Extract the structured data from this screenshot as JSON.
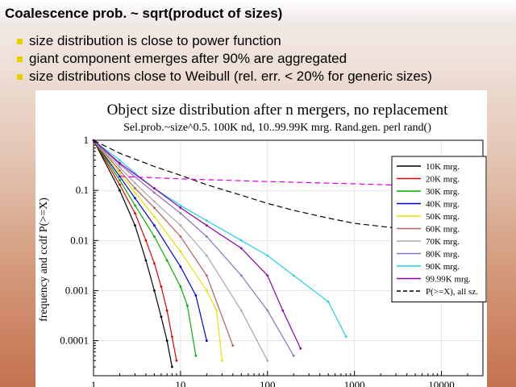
{
  "slide": {
    "title": "Coalescence prob. ~ sqrt(product of sizes)",
    "bullets": [
      "size distribution is close to power function",
      "giant component emerges after 90% are aggregated",
      "size distributions close to Weibull  (rel. err. < 20% for generic sizes)"
    ]
  },
  "chart_data": {
    "type": "line",
    "title": "Object size distribution after n mergers, no replacement",
    "subtitle": "Sel.prob.~size^0.5. 100K nd, 10..99.99K mrg. Rand.gen. perl rand()",
    "xlabel": "",
    "ylabel": "frequency and ccdf P(>=X)",
    "xscale": "log",
    "yscale": "log",
    "xlim": [
      1,
      30000
    ],
    "ylim": [
      2e-05,
      1
    ],
    "xticks": [
      1,
      10,
      100,
      1000,
      10000
    ],
    "xtick_labels": [
      "1",
      "10",
      "100",
      "1000",
      "10000"
    ],
    "yticks": [
      1,
      0.1,
      0.01,
      0.001,
      0.0001
    ],
    "ytick_labels": [
      "1",
      "0.1",
      "0.01",
      "0.001",
      "0.0001"
    ],
    "legend_position": "right",
    "series": [
      {
        "name": "10K mrg.",
        "color": "#000000",
        "dashed": false,
        "x": [
          1,
          2,
          3,
          4,
          5,
          6,
          7,
          8
        ],
        "y": [
          1,
          0.1,
          0.02,
          0.004,
          0.001,
          0.0003,
          0.0001,
          3e-05
        ]
      },
      {
        "name": "20K mrg.",
        "color": "#e00000",
        "dashed": false,
        "x": [
          1,
          2,
          3,
          4,
          5,
          6,
          7,
          8,
          9
        ],
        "y": [
          1,
          0.13,
          0.035,
          0.01,
          0.0035,
          0.0012,
          0.0004,
          0.00012,
          4e-05
        ]
      },
      {
        "name": "30K mrg.",
        "color": "#00b000",
        "dashed": false,
        "x": [
          1,
          2,
          3,
          5,
          7,
          10,
          12,
          15
        ],
        "y": [
          1,
          0.16,
          0.05,
          0.012,
          0.004,
          0.0012,
          0.0005,
          5e-05
        ]
      },
      {
        "name": "40K mrg.",
        "color": "#0000e0",
        "dashed": false,
        "x": [
          1,
          2,
          3,
          5,
          10,
          15,
          20
        ],
        "y": [
          1,
          0.19,
          0.07,
          0.02,
          0.003,
          0.0008,
          0.0001
        ]
      },
      {
        "name": "50K mrg.",
        "color": "#e8e000",
        "dashed": false,
        "x": [
          1,
          2,
          3,
          5,
          10,
          20,
          26,
          30
        ],
        "y": [
          1,
          0.22,
          0.09,
          0.03,
          0.006,
          0.001,
          0.0004,
          4e-05
        ]
      },
      {
        "name": "60K mrg.",
        "color": "#b06060",
        "dashed": false,
        "x": [
          1,
          2,
          3,
          5,
          10,
          20,
          40
        ],
        "y": [
          1,
          0.25,
          0.11,
          0.045,
          0.012,
          0.002,
          8e-05
        ]
      },
      {
        "name": "70K mrg.",
        "color": "#a8a8a8",
        "dashed": false,
        "x": [
          1,
          2,
          3,
          5,
          10,
          20,
          50,
          100
        ],
        "y": [
          1,
          0.29,
          0.14,
          0.06,
          0.02,
          0.005,
          0.0004,
          4e-05
        ]
      },
      {
        "name": "80K mrg.",
        "color": "#9070c0",
        "dashed": false,
        "x": [
          1,
          2,
          5,
          10,
          20,
          50,
          100,
          200
        ],
        "y": [
          1,
          0.33,
          0.09,
          0.035,
          0.012,
          0.002,
          0.0004,
          5e-05
        ]
      },
      {
        "name": "90K mrg.",
        "color": "#20d0e8",
        "dashed": false,
        "x": [
          1,
          2,
          3,
          5,
          10,
          20,
          50,
          100,
          200,
          500,
          800
        ],
        "y": [
          1,
          0.4,
          0.22,
          0.11,
          0.05,
          0.025,
          0.01,
          0.005,
          0.002,
          0.0006,
          0.00012
        ]
      },
      {
        "name": "99.99K mrg.",
        "color": "#9000b0",
        "dashed": false,
        "x": [
          1,
          2,
          5,
          10,
          20,
          50,
          100,
          150,
          240
        ],
        "y": [
          1,
          0.35,
          0.11,
          0.045,
          0.02,
          0.007,
          0.002,
          0.0004,
          7e-05
        ]
      },
      {
        "name": "P(>=X), all sz.",
        "color": "#000000",
        "dashed": true,
        "x": [
          1,
          2,
          5,
          10,
          20,
          50,
          100,
          200,
          500,
          1000,
          5000,
          30000
        ],
        "y": [
          1,
          0.55,
          0.3,
          0.2,
          0.13,
          0.08,
          0.055,
          0.04,
          0.028,
          0.022,
          0.016,
          0.012
        ]
      },
      {
        "name": "",
        "color": "#e000e0",
        "dashed": true,
        "x": [
          2,
          10,
          100,
          1000,
          10000,
          30000
        ],
        "y": [
          0.19,
          0.17,
          0.15,
          0.135,
          0.12,
          0.115
        ]
      }
    ]
  }
}
